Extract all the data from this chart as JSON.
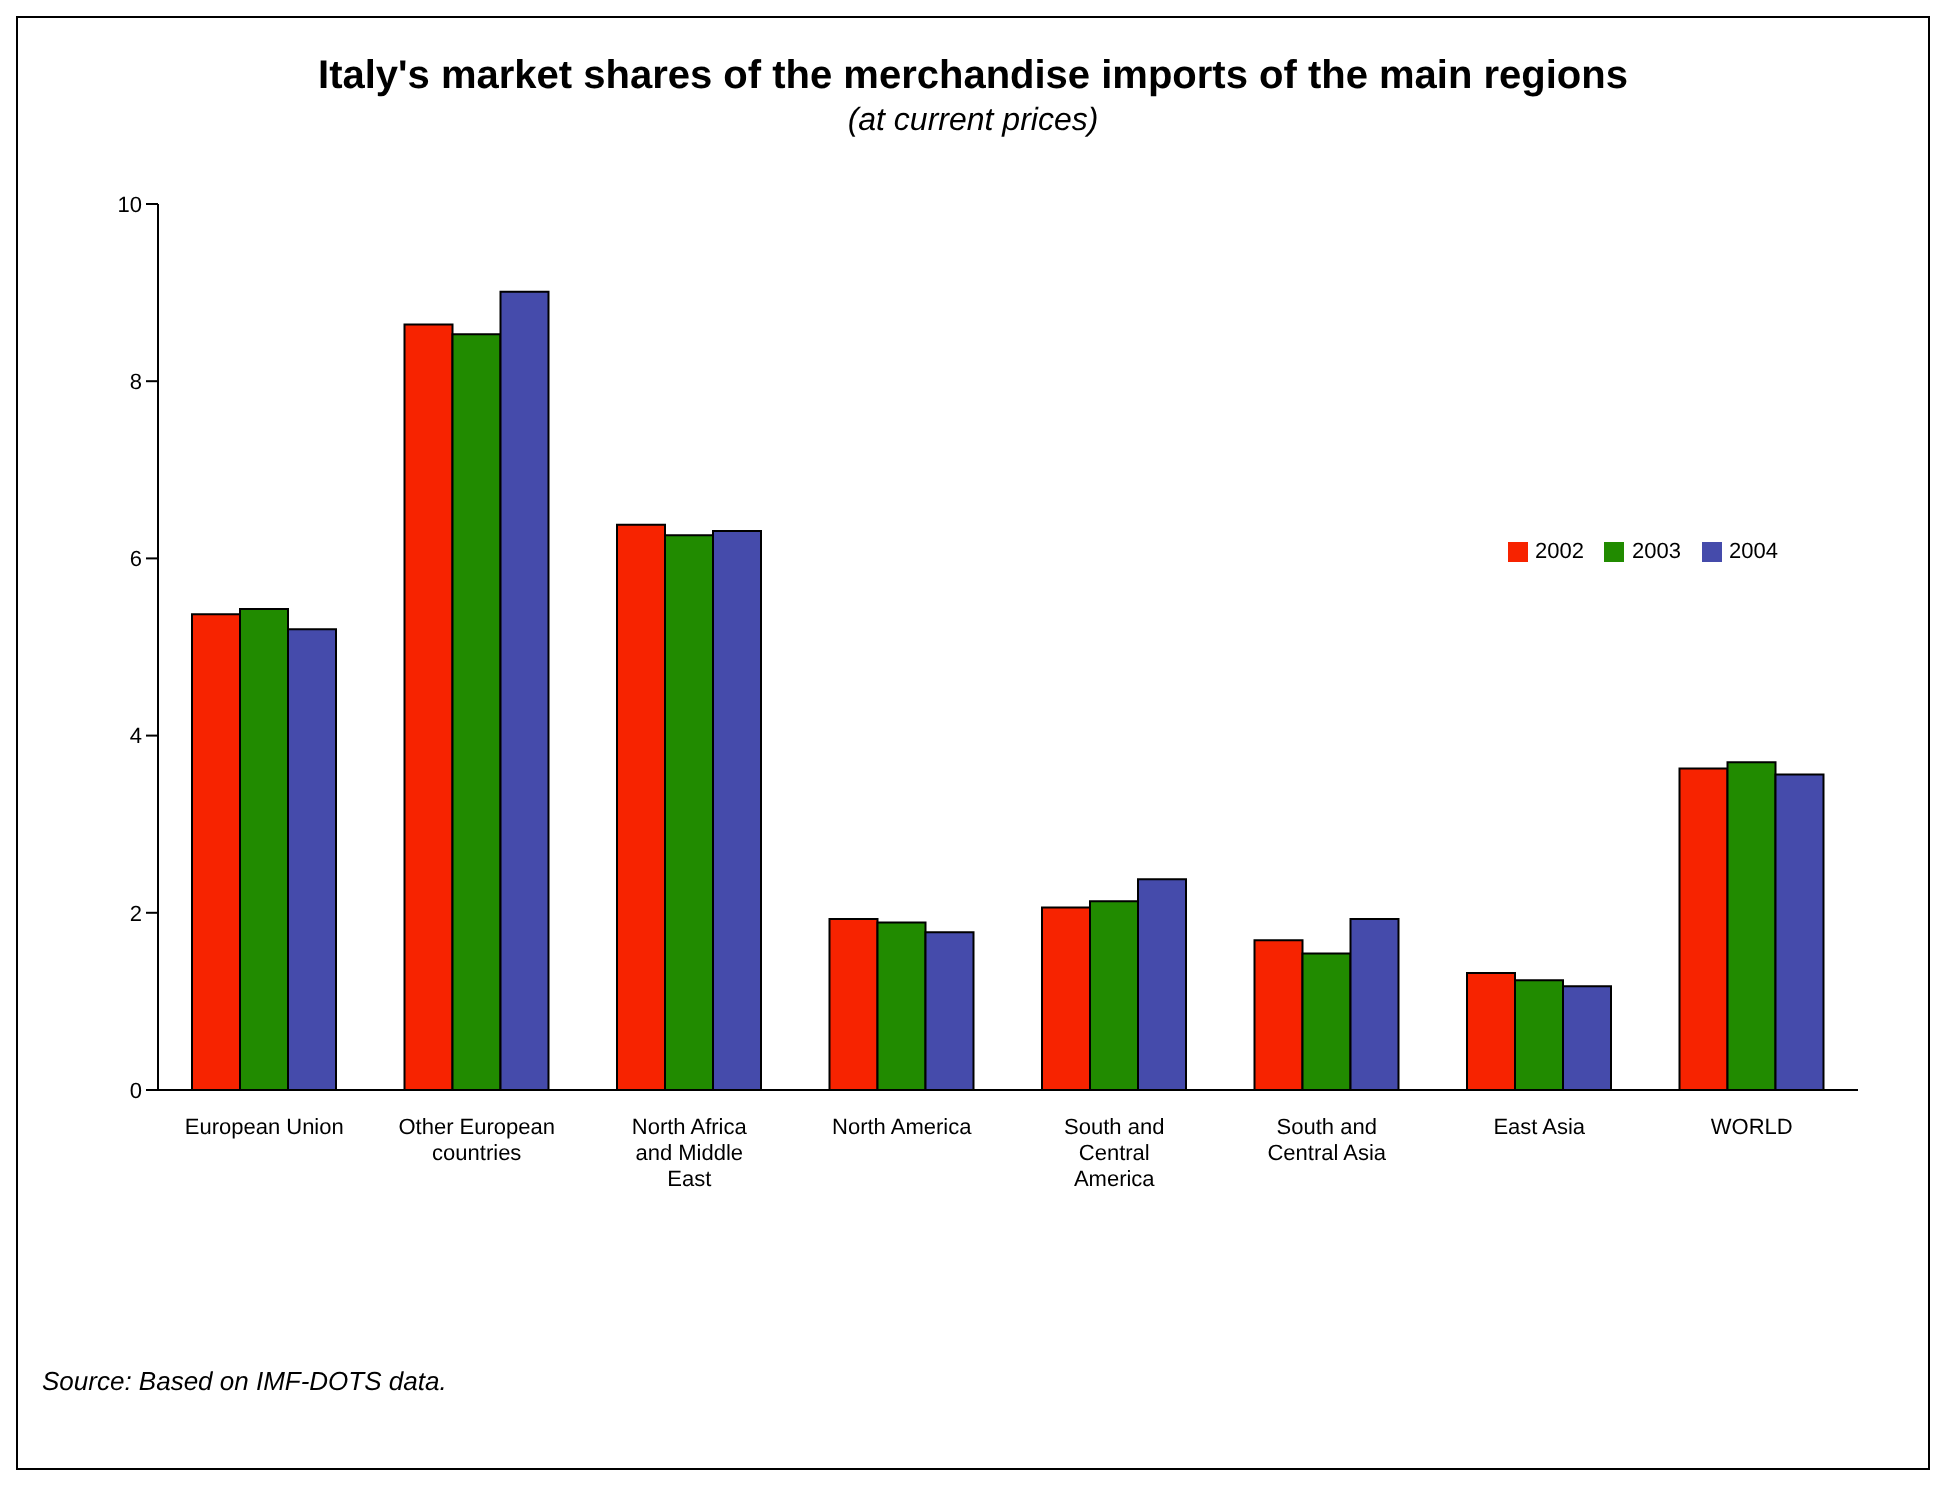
{
  "chart_data": {
    "type": "bar",
    "title": "Italy's market shares of the merchandise imports of the main regions",
    "subtitle": "(at current prices)",
    "categories": [
      "European Union",
      "Other European countries",
      "North Africa and Middle East",
      "North America",
      "South and Central America",
      "South and Central Asia",
      "East Asia",
      "WORLD"
    ],
    "series": [
      {
        "name": "2002",
        "color": "#f72300",
        "values": [
          5.37,
          8.64,
          6.38,
          1.93,
          2.06,
          1.69,
          1.32,
          3.63
        ]
      },
      {
        "name": "2003",
        "color": "#218b00",
        "values": [
          5.43,
          8.53,
          6.26,
          1.89,
          2.13,
          1.54,
          1.24,
          3.7
        ]
      },
      {
        "name": "2004",
        "color": "#454bab",
        "values": [
          5.2,
          9.01,
          6.31,
          1.78,
          2.38,
          1.93,
          1.17,
          3.56
        ]
      }
    ],
    "ylim": [
      0,
      10
    ],
    "yticks": [
      0,
      2,
      4,
      6,
      8,
      10
    ],
    "grid": false,
    "legend": "right",
    "annotations": [
      "Source: Based on IMF-DOTS data."
    ]
  }
}
